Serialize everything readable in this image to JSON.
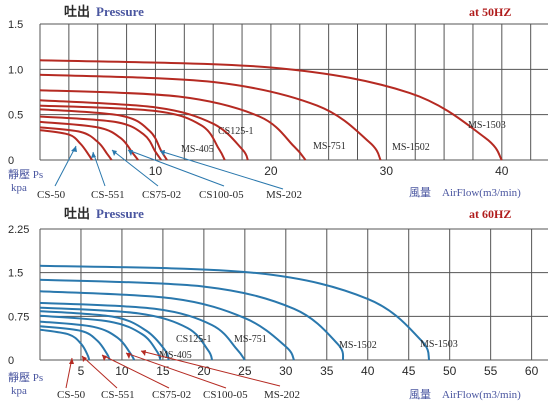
{
  "colors": {
    "text": "#2a2a2a",
    "accent": "#b01c1c",
    "label_blue": "#4a56a0",
    "grid": "#555555",
    "curve_50": "#b52a22",
    "curve_60": "#2a78ad",
    "arrow_50": "#2a78ad",
    "arrow_60": "#b52a22"
  },
  "chart_data": [
    {
      "type": "line",
      "title_cn": "吐出",
      "title": "Pressure",
      "freq": "at 50HZ",
      "ylabel": "靜壓 Ps",
      "yunit": "kpa",
      "xlabel_cn": "風量",
      "xlabel": "AirFlow(m3/min)",
      "xlim": [
        0,
        44
      ],
      "ylim": [
        0,
        1.5
      ],
      "xticks": [
        "10",
        "20",
        "30",
        "40"
      ],
      "yticks": [
        "0",
        "0.5",
        "1.0",
        "1.5"
      ],
      "grid": true,
      "series": [
        {
          "name": "CS-50",
          "x": [
            0,
            2.5,
            3.5,
            4.2,
            4.5
          ],
          "y": [
            0.33,
            0.28,
            0.18,
            0.06,
            0
          ]
        },
        {
          "name": "CS-551",
          "x": [
            0,
            3.5,
            5.0,
            5.8,
            6.2
          ],
          "y": [
            0.36,
            0.31,
            0.2,
            0.07,
            0
          ]
        },
        {
          "name": "CS75-02",
          "x": [
            0,
            5.0,
            7.0,
            8.0,
            8.5
          ],
          "y": [
            0.42,
            0.36,
            0.24,
            0.08,
            0
          ]
        },
        {
          "name": "CS100-05",
          "x": [
            0,
            6.5,
            9.0,
            10.0,
            10.5
          ],
          "y": [
            0.48,
            0.42,
            0.28,
            0.09,
            0
          ]
        },
        {
          "name": "MS-202",
          "x": [
            0,
            7.0,
            9.5,
            10.5,
            11.0
          ],
          "y": [
            0.56,
            0.49,
            0.32,
            0.1,
            0
          ]
        },
        {
          "name": "MS-405",
          "x": [
            0,
            10.0,
            14.0,
            15.5,
            16.0
          ],
          "y": [
            0.6,
            0.54,
            0.38,
            0.12,
            0
          ]
        },
        {
          "name": "CS125-1",
          "x": [
            0,
            10.0,
            15.0,
            17.5,
            18.0
          ],
          "y": [
            0.66,
            0.58,
            0.4,
            0.12,
            0
          ]
        },
        {
          "name": "MS-751",
          "x": [
            0,
            12.0,
            19.0,
            22.0,
            23.0
          ],
          "y": [
            0.77,
            0.7,
            0.48,
            0.15,
            0
          ]
        },
        {
          "name": "MS-1502",
          "x": [
            0,
            15.0,
            24.0,
            28.5,
            29.5
          ],
          "y": [
            0.94,
            0.86,
            0.6,
            0.2,
            0
          ]
        },
        {
          "name": "MS-1503",
          "x": [
            0,
            20.0,
            32.0,
            38.5,
            40.0
          ],
          "y": [
            1.1,
            1.02,
            0.74,
            0.25,
            0
          ]
        }
      ],
      "labels": [
        "CS125-1",
        "MS-405",
        "MS-751",
        "MS-1502",
        "MS-1503"
      ],
      "bottom_labels": [
        "CS-50",
        "CS-551",
        "CS75-02",
        "CS100-05",
        "MS-202"
      ]
    },
    {
      "type": "line",
      "title_cn": "吐出",
      "title": "Pressure",
      "freq": "at 60HZ",
      "ylabel": "靜壓 Ps",
      "yunit": "kpa",
      "xlabel_cn": "風量",
      "xlabel": "AirFlow(m3/min)",
      "xlim": [
        0,
        62
      ],
      "ylim": [
        0,
        2.25
      ],
      "xticks": [
        "5",
        "10",
        "15",
        "20",
        "25",
        "30",
        "35",
        "40",
        "45",
        "50",
        "55",
        "60"
      ],
      "yticks": [
        "0",
        "0.75",
        "1.5",
        "2.25"
      ],
      "grid": true,
      "series": [
        {
          "name": "CS-50",
          "x": [
            0,
            3.5,
            5.0,
            5.8,
            6.0
          ],
          "y": [
            0.52,
            0.44,
            0.28,
            0.09,
            0
          ]
        },
        {
          "name": "CS-551",
          "x": [
            0,
            5.0,
            7.0,
            8.2,
            8.5
          ],
          "y": [
            0.58,
            0.5,
            0.33,
            0.1,
            0
          ]
        },
        {
          "name": "CS75-02",
          "x": [
            0,
            6.5,
            9.5,
            11.0,
            11.5
          ],
          "y": [
            0.66,
            0.57,
            0.38,
            0.12,
            0
          ]
        },
        {
          "name": "CS100-05",
          "x": [
            0,
            8.5,
            12.5,
            14.3,
            14.7
          ],
          "y": [
            0.76,
            0.66,
            0.44,
            0.14,
            0
          ]
        },
        {
          "name": "MS-202",
          "x": [
            0,
            9.0,
            13.0,
            15.3,
            15.7
          ],
          "y": [
            0.84,
            0.74,
            0.5,
            0.16,
            0
          ]
        },
        {
          "name": "MS-405",
          "x": [
            0,
            12.0,
            18.0,
            20.5,
            21.0
          ],
          "y": [
            0.9,
            0.8,
            0.55,
            0.17,
            0
          ]
        },
        {
          "name": "CS125-1",
          "x": [
            0,
            14.0,
            21.0,
            24.0,
            25.0
          ],
          "y": [
            0.98,
            0.88,
            0.6,
            0.19,
            0
          ]
        },
        {
          "name": "MS-751",
          "x": [
            0,
            16.0,
            25.0,
            30.0,
            31.0
          ],
          "y": [
            1.18,
            1.06,
            0.72,
            0.23,
            0
          ]
        },
        {
          "name": "MS-1502",
          "x": [
            0,
            20.0,
            31.0,
            36.3,
            37.0
          ],
          "y": [
            1.38,
            1.26,
            0.88,
            0.28,
            0
          ]
        },
        {
          "name": "MS-1503",
          "x": [
            0,
            26.0,
            40.0,
            46.5,
            47.5
          ],
          "y": [
            1.62,
            1.5,
            1.05,
            0.34,
            0
          ]
        }
      ],
      "labels": [
        "CS125-1",
        "MS-405",
        "MS-751",
        "MS-1502",
        "MS-1503"
      ],
      "bottom_labels": [
        "CS-50",
        "CS-551",
        "CS75-02",
        "CS100-05",
        "MS-202"
      ]
    }
  ]
}
